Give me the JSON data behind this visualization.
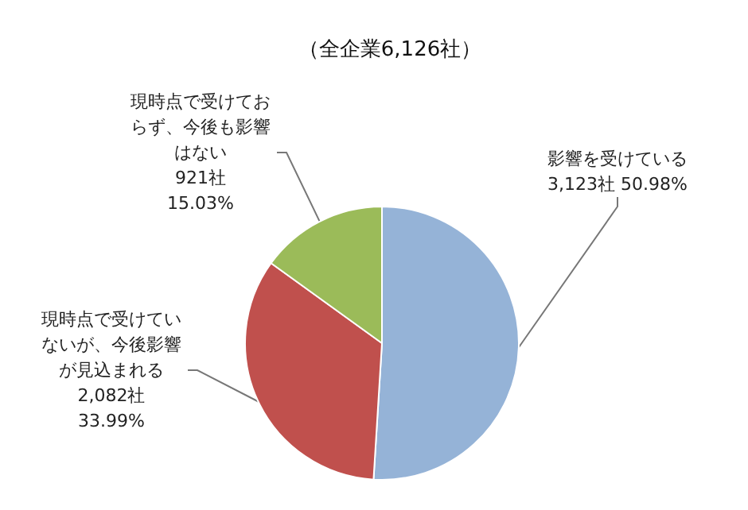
{
  "chart_data": {
    "type": "pie",
    "title": "（全企業6,126社）",
    "categories": [
      "影響を受けている",
      "現時点で受けていないが、今後影響が見込まれる",
      "現時点で受けておらず、今後も影響はない"
    ],
    "values": [
      3123,
      2082,
      921
    ],
    "value_labels": [
      "3,123社 50.98%",
      "2,082社\n33.99%",
      "921社\n15.03%"
    ],
    "colors": [
      "#95b3d7",
      "#c0504d",
      "#9bbb59"
    ],
    "legend": false
  }
}
